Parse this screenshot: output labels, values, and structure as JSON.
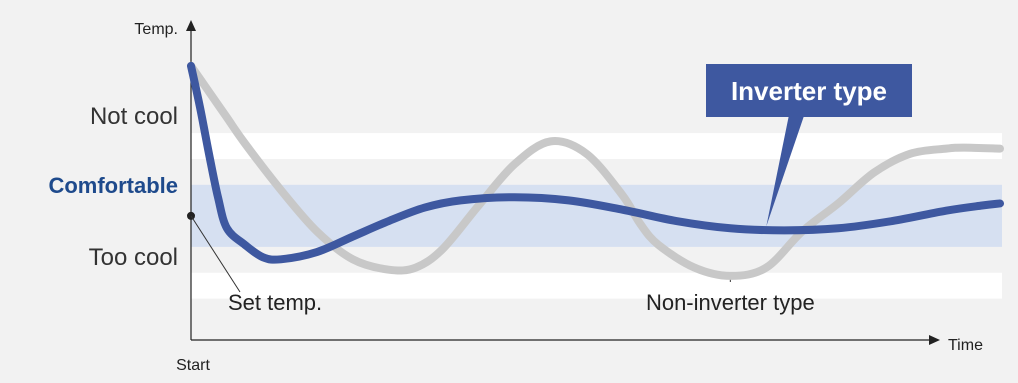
{
  "chart_data": {
    "type": "line",
    "title": "",
    "ylabel": "Temp.",
    "xlabel": "Time",
    "x_start_label": "Start",
    "bands": [
      {
        "label": "Not cool",
        "y": [
          0.55,
          0.8
        ],
        "color": "#ffffff"
      },
      {
        "label": "Comfortable",
        "y": [
          -0.3,
          0.3
        ],
        "color": "#d6e0f1"
      },
      {
        "label": "Too cool",
        "y": [
          -0.8,
          -0.55
        ],
        "color": "#ffffff"
      }
    ],
    "comfortable_label_color": "#1e4a8c",
    "series": [
      {
        "name": "Inverter type",
        "color": "#3e58a0",
        "points": [
          [
            0,
            1.45
          ],
          [
            0.5,
            1.05
          ],
          [
            1,
            0.6
          ],
          [
            1.5,
            0.18
          ],
          [
            2,
            -0.12
          ],
          [
            3,
            -0.28
          ],
          [
            4,
            -0.4
          ],
          [
            5,
            -0.42
          ],
          [
            7,
            -0.35
          ],
          [
            9,
            -0.2
          ],
          [
            11,
            -0.05
          ],
          [
            13,
            0.08
          ],
          [
            15,
            0.15
          ],
          [
            18,
            0.18
          ],
          [
            21,
            0.15
          ],
          [
            24,
            0.06
          ],
          [
            27,
            -0.05
          ],
          [
            30,
            -0.12
          ],
          [
            33,
            -0.14
          ],
          [
            36,
            -0.12
          ],
          [
            39,
            -0.05
          ],
          [
            42,
            0.05
          ],
          [
            44,
            0.1
          ],
          [
            45,
            0.12
          ]
        ]
      },
      {
        "name": "Non-inverter type",
        "color": "#c8c8c8",
        "points": [
          [
            0,
            1.45
          ],
          [
            1,
            1.2
          ],
          [
            2,
            0.95
          ],
          [
            3,
            0.7
          ],
          [
            5,
            0.25
          ],
          [
            7,
            -0.15
          ],
          [
            9,
            -0.42
          ],
          [
            11,
            -0.52
          ],
          [
            12.5,
            -0.5
          ],
          [
            14,
            -0.32
          ],
          [
            16,
            0.1
          ],
          [
            18,
            0.5
          ],
          [
            20,
            0.72
          ],
          [
            22,
            0.6
          ],
          [
            24,
            0.2
          ],
          [
            25,
            -0.08
          ],
          [
            26,
            -0.28
          ],
          [
            28,
            -0.5
          ],
          [
            30,
            -0.58
          ],
          [
            32,
            -0.5
          ],
          [
            34,
            -0.15
          ],
          [
            36,
            0.12
          ],
          [
            38,
            0.42
          ],
          [
            40,
            0.6
          ],
          [
            42,
            0.65
          ],
          [
            43,
            0.66
          ],
          [
            45,
            0.65
          ]
        ]
      }
    ],
    "annotations": [
      {
        "text": "Set temp.",
        "x": 0,
        "y": 0
      },
      {
        "text": "Non-inverter type",
        "x": 30,
        "y": -0.58
      },
      {
        "text": "Inverter type",
        "x": 32,
        "y": -0.14,
        "box_color": "#3e58a0",
        "text_color": "#ffffff"
      }
    ],
    "xlim": [
      0,
      45
    ],
    "ylim": [
      -1.2,
      1.7
    ],
    "grid": false,
    "legend": "none"
  }
}
